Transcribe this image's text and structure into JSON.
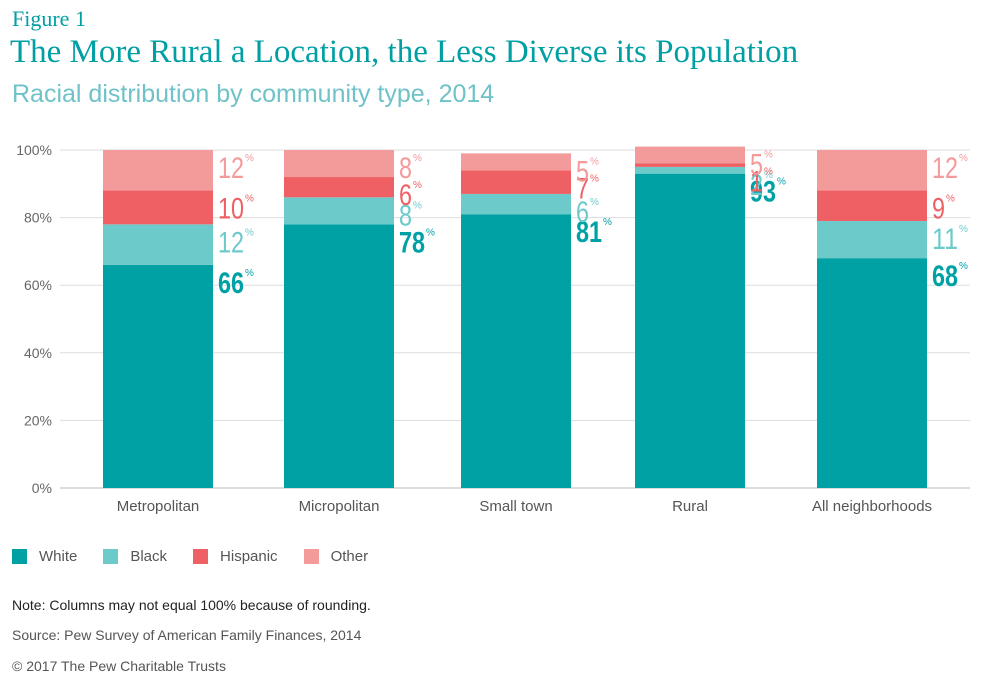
{
  "figure_label": "Figure 1",
  "title": "The More Rural a Location, the Less Diverse its Population",
  "subtitle": "Racial distribution by community type, 2014",
  "note": "Note: Columns may not equal 100% because of rounding.",
  "source": "Source: Pew Survey of American Family Finances, 2014",
  "copyright": "© 2017 The Pew Charitable Trusts",
  "colors": {
    "White": "#00a1a5",
    "Black": "#6ccacb",
    "Hispanic": "#ef6064",
    "Other": "#f39a9b",
    "grid": "#dddddd",
    "axis_text": "#666666"
  },
  "chart_data": {
    "type": "bar",
    "stacked": true,
    "title": "The More Rural a Location, the Less Diverse its Population",
    "subtitle": "Racial distribution by community type, 2014",
    "categories": [
      "Metropolitan",
      "Micropolitan",
      "Small town",
      "Rural",
      "All neighborhoods"
    ],
    "series": [
      {
        "name": "White",
        "values": [
          66,
          78,
          81,
          93,
          68
        ]
      },
      {
        "name": "Black",
        "values": [
          12,
          8,
          6,
          2,
          11
        ]
      },
      {
        "name": "Hispanic",
        "values": [
          10,
          6,
          7,
          1,
          9
        ]
      },
      {
        "name": "Other",
        "values": [
          12,
          8,
          5,
          5,
          12
        ]
      }
    ],
    "yticks": [
      "0%",
      "20%",
      "40%",
      "60%",
      "80%",
      "100%"
    ],
    "ylim": [
      0,
      100
    ],
    "grid": true,
    "legend": "bottom-left",
    "value_suffix": "%"
  }
}
